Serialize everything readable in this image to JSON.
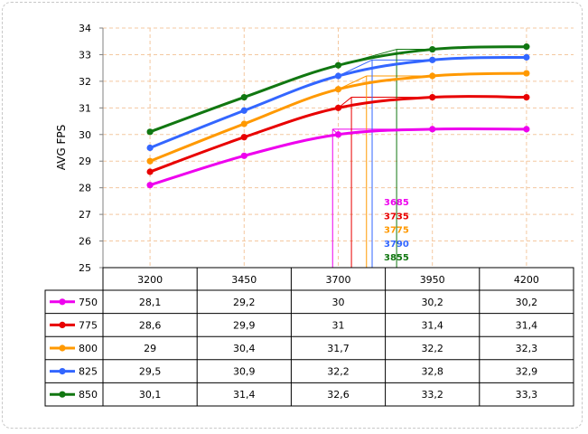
{
  "chart_data": {
    "type": "line",
    "ylabel": "AVG FPS",
    "xlabel": "",
    "categories": [
      "3200",
      "3450",
      "3700",
      "3950",
      "4200"
    ],
    "ylim": [
      25,
      34
    ],
    "yticks": [
      "25",
      "26",
      "27",
      "28",
      "29",
      "30",
      "31",
      "32",
      "33",
      "34"
    ],
    "grid": true,
    "legend": "table-left",
    "series": [
      {
        "name": "750",
        "color": "#ee00ee",
        "values": [
          28.1,
          29.2,
          30,
          30.2,
          30.2
        ],
        "labels": [
          "28,1",
          "29,2",
          "30",
          "30,2",
          "30,2"
        ]
      },
      {
        "name": "775",
        "color": "#e80000",
        "values": [
          28.6,
          29.9,
          31,
          31.4,
          31.4
        ],
        "labels": [
          "28,6",
          "29,9",
          "31",
          "31,4",
          "31,4"
        ]
      },
      {
        "name": "800",
        "color": "#ff9900",
        "values": [
          29,
          30.4,
          31.7,
          32.2,
          32.3
        ],
        "labels": [
          "29",
          "30,4",
          "31,7",
          "32,2",
          "32,3"
        ]
      },
      {
        "name": "825",
        "color": "#3366ff",
        "values": [
          29.5,
          30.9,
          32.2,
          32.8,
          32.9
        ],
        "labels": [
          "29,5",
          "30,9",
          "32,2",
          "32,8",
          "32,9"
        ]
      },
      {
        "name": "850",
        "color": "#117711",
        "values": [
          30.1,
          31.4,
          32.6,
          33.2,
          33.3
        ],
        "labels": [
          "30,1",
          "31,4",
          "32,6",
          "33,2",
          "33,3"
        ]
      }
    ],
    "annotations": [
      {
        "text": "3685",
        "x": 3685,
        "series": "750"
      },
      {
        "text": "3735",
        "x": 3735,
        "series": "775"
      },
      {
        "text": "3775",
        "x": 3775,
        "series": "800"
      },
      {
        "text": "3790",
        "x": 3790,
        "series": "825"
      },
      {
        "text": "3855",
        "x": 3855,
        "series": "850"
      }
    ]
  }
}
